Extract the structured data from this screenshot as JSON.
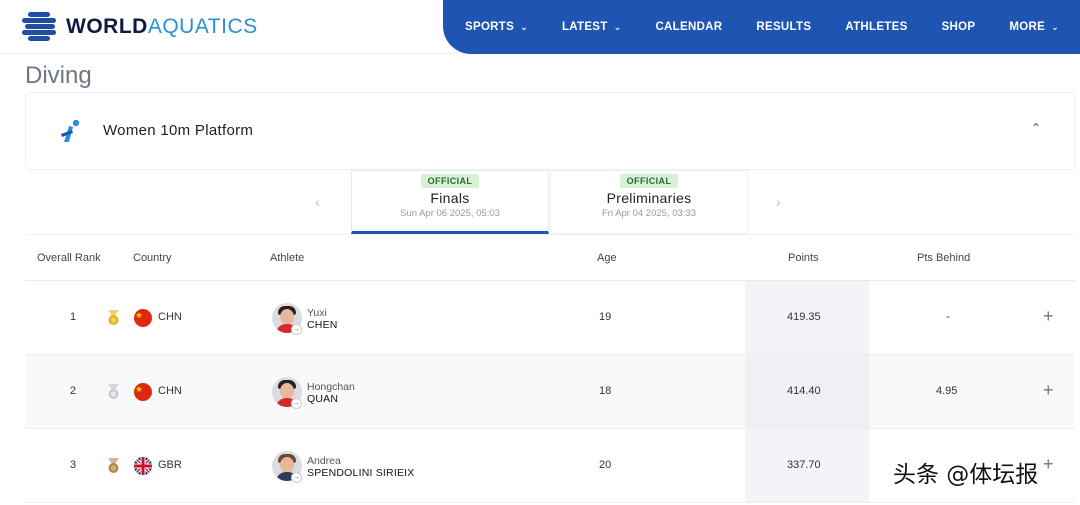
{
  "brand": {
    "word": "WORLD",
    "accent": "AQUATICS"
  },
  "nav": [
    {
      "label": "SPORTS",
      "dropdown": true
    },
    {
      "label": "LATEST",
      "dropdown": true
    },
    {
      "label": "CALENDAR",
      "dropdown": false
    },
    {
      "label": "RESULTS",
      "dropdown": false
    },
    {
      "label": "ATHLETES",
      "dropdown": false
    },
    {
      "label": "SHOP",
      "dropdown": false
    },
    {
      "label": "MORE",
      "dropdown": true
    }
  ],
  "page_title": "Diving",
  "event": {
    "name": "Women 10m Platform",
    "icon": "diving-icon"
  },
  "tabs": [
    {
      "badge": "OFFICIAL",
      "label": "Finals",
      "date": "Sun Apr 06 2025, 05:03",
      "active": true
    },
    {
      "badge": "OFFICIAL",
      "label": "Preliminaries",
      "date": "Fri Apr 04 2025, 03:33",
      "active": false
    }
  ],
  "table": {
    "headers": {
      "rank": "Overall Rank",
      "country": "Country",
      "athlete": "Athlete",
      "age": "Age",
      "points": "Points",
      "behind": "Pts Behind"
    },
    "rows": [
      {
        "rank": "1",
        "medal": "gold",
        "country": "CHN",
        "first": "Yuxi",
        "last": "CHEN",
        "age": "19",
        "points": "419.35",
        "behind": "-"
      },
      {
        "rank": "2",
        "medal": "silver",
        "country": "CHN",
        "first": "Hongchan",
        "last": "QUAN",
        "age": "18",
        "points": "414.40",
        "behind": "4.95"
      },
      {
        "rank": "3",
        "medal": "bronze",
        "country": "GBR",
        "first": "Andrea",
        "last": "SPENDOLINI SIRIEIX",
        "age": "20",
        "points": "337.70",
        "behind": ""
      }
    ]
  },
  "colors": {
    "nav": "#1e55b3",
    "accent": "#2b8fd6",
    "gold": "#e2b21c",
    "silver": "#c9ccd1",
    "bronze": "#b08a4a"
  },
  "watermark": "头条 @体坛报"
}
